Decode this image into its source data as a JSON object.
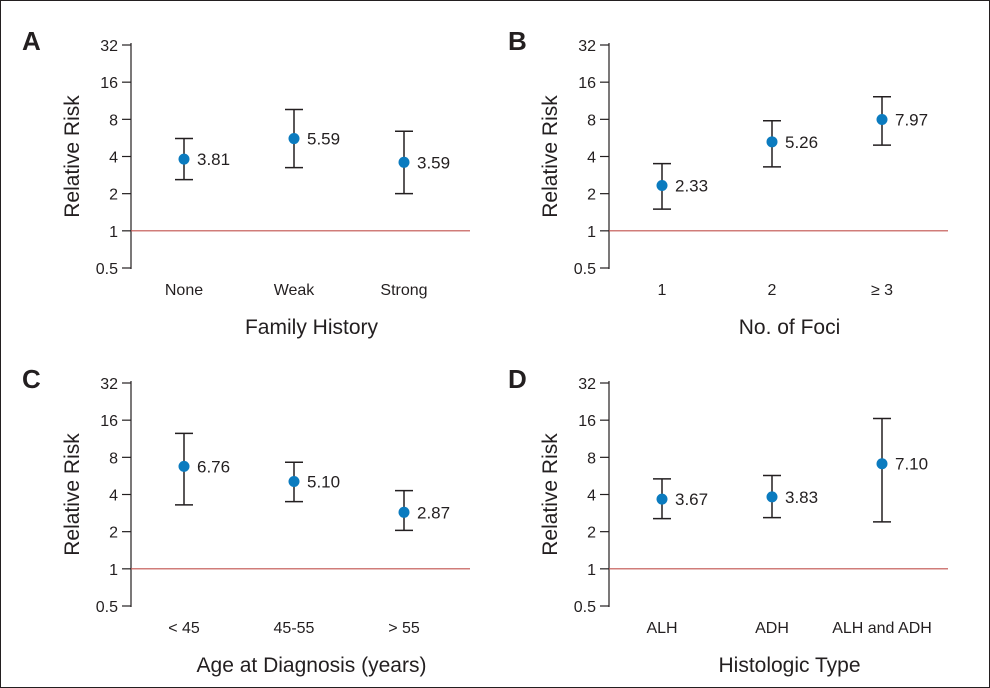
{
  "colors": {
    "point": "#0b7bbf",
    "reference_line": "#c0504d",
    "axis": "#231f20"
  },
  "chart_data": [
    {
      "panel": "A",
      "type": "scatter",
      "error_bars": true,
      "yscale": "log2",
      "ylabel": "Relative Risk",
      "xlabel": "Family History",
      "yticks": [
        "0.5",
        "1",
        "2",
        "4",
        "8",
        "16",
        "32"
      ],
      "ylim": [
        0.5,
        32
      ],
      "reference_line": 1,
      "categories": [
        "None",
        "Weak",
        "Strong"
      ],
      "values": [
        3.81,
        5.59,
        3.59
      ],
      "value_labels": [
        "3.81",
        "5.59",
        "3.59"
      ],
      "ci_low": [
        2.6,
        3.25,
        2.0
      ],
      "ci_high": [
        5.6,
        9.6,
        6.4
      ]
    },
    {
      "panel": "B",
      "type": "scatter",
      "error_bars": true,
      "yscale": "log2",
      "ylabel": "Relative Risk",
      "xlabel": "No. of Foci",
      "yticks": [
        "0.5",
        "1",
        "2",
        "4",
        "8",
        "16",
        "32"
      ],
      "ylim": [
        0.5,
        32
      ],
      "reference_line": 1,
      "categories": [
        "1",
        "2",
        "≥ 3"
      ],
      "values": [
        2.33,
        5.26,
        7.97
      ],
      "value_labels": [
        "2.33",
        "5.26",
        "7.97"
      ],
      "ci_low": [
        1.5,
        3.3,
        4.95
      ],
      "ci_high": [
        3.5,
        7.8,
        12.2
      ]
    },
    {
      "panel": "C",
      "type": "scatter",
      "error_bars": true,
      "yscale": "log2",
      "ylabel": "Relative Risk",
      "xlabel": "Age at Diagnosis (years)",
      "yticks": [
        "0.5",
        "1",
        "2",
        "4",
        "8",
        "16",
        "32"
      ],
      "ylim": [
        0.5,
        32
      ],
      "reference_line": 1,
      "categories": [
        "< 45",
        "45-55",
        "> 55"
      ],
      "values": [
        6.76,
        5.1,
        2.87
      ],
      "value_labels": [
        "6.76",
        "5.10",
        "2.87"
      ],
      "ci_low": [
        3.3,
        3.5,
        2.05
      ],
      "ci_high": [
        12.5,
        7.3,
        4.3
      ]
    },
    {
      "panel": "D",
      "type": "scatter",
      "error_bars": true,
      "yscale": "log2",
      "ylabel": "Relative Risk",
      "xlabel": "Histologic Type",
      "yticks": [
        "0.5",
        "1",
        "2",
        "4",
        "8",
        "16",
        "32"
      ],
      "ylim": [
        0.5,
        32
      ],
      "reference_line": 1,
      "categories": [
        "ALH",
        "ADH",
        "ALH and ADH"
      ],
      "values": [
        3.67,
        3.83,
        7.1
      ],
      "value_labels": [
        "3.67",
        "3.83",
        "7.10"
      ],
      "ci_low": [
        2.55,
        2.6,
        2.4
      ],
      "ci_high": [
        5.35,
        5.7,
        16.5
      ]
    }
  ]
}
